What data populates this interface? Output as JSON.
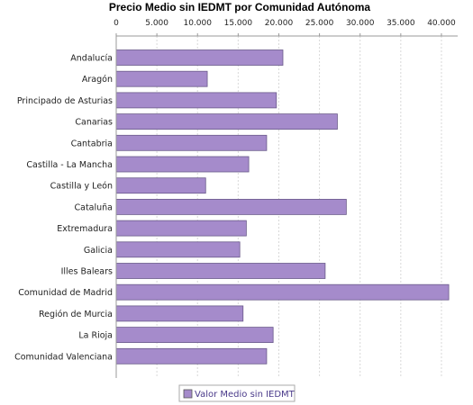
{
  "chart_data": {
    "type": "bar",
    "orientation": "horizontal",
    "title": "Precio Medio sin IEDMT por Comunidad Autónoma",
    "xlabel": "",
    "ylabel": "",
    "xlim": [
      0,
      42000
    ],
    "x_ticks": [
      0,
      5000,
      10000,
      15000,
      20000,
      25000,
      30000,
      35000,
      40000
    ],
    "x_tick_labels": [
      "0",
      "5.000",
      "10.000",
      "15.000",
      "20.000",
      "25.000",
      "30.000",
      "35.000",
      "40.000"
    ],
    "x_axis_position": "top",
    "grid": "vertical dashed",
    "legend_position": "bottom-center",
    "categories": [
      "Andalucía",
      "Aragón",
      "Principado de Asturias",
      "Canarias",
      "Cantabria",
      "Castilla - La Mancha",
      "Castilla y León",
      "Cataluña",
      "Extremadura",
      "Galicia",
      "Illes Balears",
      "Comunidad de Madrid",
      "Región de Murcia",
      "La Rioja",
      "Comunidad Valenciana"
    ],
    "series": [
      {
        "name": "Valor Medio sin IEDMT",
        "color": "#a58bcb",
        "values": [
          20500,
          11200,
          19700,
          27200,
          18500,
          16300,
          11000,
          28300,
          16000,
          15200,
          25700,
          40900,
          15600,
          19300,
          18500
        ]
      }
    ]
  }
}
